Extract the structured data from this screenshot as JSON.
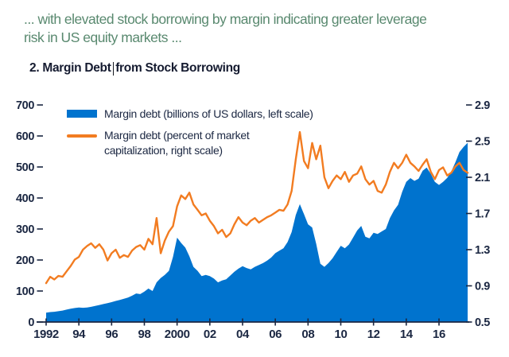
{
  "intro": {
    "line1": "... with elevated stock borrowing by margin indicating greater leverage",
    "line2": "risk in US equity markets ..."
  },
  "panel": {
    "title_before_caret": "2. Margin Debt",
    "title_after_caret": "from Stock Borrowing"
  },
  "legend": {
    "item1_label": "Margin debt (billions of US dollars, left scale)",
    "item2_label": "Margin debt (percent of market capitalization, right scale)"
  },
  "colors": {
    "area_blue": "#0073CE",
    "line_orange": "#F27C21",
    "axis_navy": "#1B2742",
    "title_navy": "#151B30",
    "intro_green": "#59896F"
  },
  "chart_data": {
    "type": "area",
    "title": "2. Margin Debt from Stock Borrowing",
    "x_start": 1992,
    "x_step": 0.25,
    "x_axis": {
      "range": [
        1992,
        2017.75
      ],
      "tick_years": [
        1992,
        1994,
        1996,
        1998,
        2000,
        2002,
        2004,
        2006,
        2008,
        2010,
        2012,
        2014,
        2016
      ],
      "tick_labels": [
        "1992",
        "94",
        "96",
        "98",
        "2000",
        "02",
        "04",
        "06",
        "08",
        "10",
        "12",
        "14",
        "16"
      ]
    },
    "left_axis": {
      "range": [
        0,
        700
      ],
      "tick_values": [
        0,
        100,
        200,
        300,
        400,
        500,
        600,
        700
      ],
      "tick_labels": [
        "0",
        "100",
        "200",
        "300",
        "400",
        "500",
        "600",
        "700"
      ]
    },
    "right_axis": {
      "range": [
        0.5,
        2.9
      ],
      "tick_values": [
        0.5,
        0.9,
        1.3,
        1.7,
        2.1,
        2.5,
        2.9
      ],
      "tick_labels": [
        "0.5",
        "0.9",
        "1.3",
        "1.7",
        "2.1",
        "2.5",
        "2.9"
      ]
    },
    "series": [
      {
        "name": "Margin debt (billions of US dollars, left scale)",
        "type": "area",
        "axis": "left",
        "values": [
          30,
          32,
          33,
          35,
          37,
          40,
          43,
          45,
          47,
          46,
          47,
          49,
          52,
          55,
          58,
          61,
          64,
          68,
          71,
          75,
          79,
          85,
          92,
          90,
          98,
          108,
          100,
          128,
          142,
          152,
          165,
          210,
          272,
          255,
          240,
          212,
          178,
          165,
          148,
          152,
          148,
          140,
          128,
          134,
          138,
          150,
          162,
          172,
          180,
          174,
          170,
          178,
          184,
          190,
          198,
          208,
          222,
          230,
          238,
          258,
          290,
          345,
          380,
          348,
          315,
          305,
          252,
          188,
          178,
          190,
          206,
          226,
          246,
          238,
          250,
          272,
          295,
          310,
          275,
          270,
          288,
          284,
          292,
          300,
          335,
          360,
          378,
          420,
          452,
          464,
          455,
          462,
          488,
          498,
          478,
          452,
          442,
          452,
          465,
          485,
          515,
          548,
          565,
          578
        ]
      },
      {
        "name": "Margin debt (percent of market capitalization, right scale)",
        "type": "line",
        "axis": "right",
        "values": [
          0.93,
          1.0,
          0.97,
          1.01,
          1.0,
          1.06,
          1.12,
          1.19,
          1.22,
          1.3,
          1.34,
          1.37,
          1.32,
          1.36,
          1.3,
          1.18,
          1.26,
          1.3,
          1.21,
          1.24,
          1.22,
          1.29,
          1.33,
          1.35,
          1.3,
          1.42,
          1.36,
          1.65,
          1.26,
          1.4,
          1.5,
          1.56,
          1.78,
          1.9,
          1.86,
          1.93,
          1.8,
          1.74,
          1.68,
          1.7,
          1.62,
          1.56,
          1.48,
          1.52,
          1.44,
          1.48,
          1.58,
          1.66,
          1.6,
          1.57,
          1.62,
          1.65,
          1.6,
          1.63,
          1.66,
          1.68,
          1.71,
          1.74,
          1.73,
          1.8,
          1.95,
          2.3,
          2.6,
          2.28,
          2.2,
          2.48,
          2.3,
          2.45,
          2.1,
          1.98,
          2.06,
          2.12,
          2.08,
          2.16,
          2.05,
          2.12,
          2.14,
          2.22,
          2.08,
          2.02,
          2.06,
          1.95,
          1.93,
          2.02,
          2.16,
          2.26,
          2.2,
          2.26,
          2.35,
          2.26,
          2.22,
          2.17,
          2.24,
          2.3,
          2.16,
          2.08,
          2.18,
          2.21,
          2.12,
          2.15,
          2.22,
          2.26,
          2.18,
          2.15
        ]
      }
    ],
    "grid": false,
    "legend_position": "top-left-inside"
  }
}
